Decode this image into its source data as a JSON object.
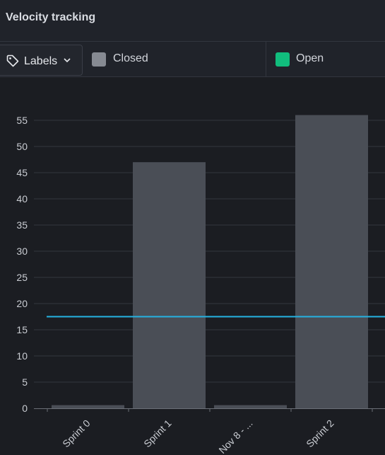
{
  "header": {
    "title": "Velocity tracking"
  },
  "toolbar": {
    "labels_button": "Labels",
    "legend": [
      {
        "name": "Closed",
        "color": "#868a92"
      },
      {
        "name": "Open",
        "color": "#11bd7d"
      }
    ]
  },
  "chart_data": {
    "type": "bar",
    "title": "Velocity tracking",
    "categories": [
      "Sprint 0",
      "Sprint 1",
      "Nov 8 - ...",
      "Sprint 2"
    ],
    "series": [
      {
        "name": "Closed",
        "values": [
          0.6,
          47,
          0.6,
          56
        ],
        "color": "#4a4e56"
      }
    ],
    "reference_line": {
      "value": 17.5,
      "color": "#26b3e3"
    },
    "ylim": [
      0,
      55
    ],
    "yticks": [
      0,
      5,
      10,
      15,
      20,
      25,
      30,
      35,
      40,
      45,
      50,
      55
    ],
    "xlabel": "",
    "ylabel": "",
    "grid": true
  }
}
